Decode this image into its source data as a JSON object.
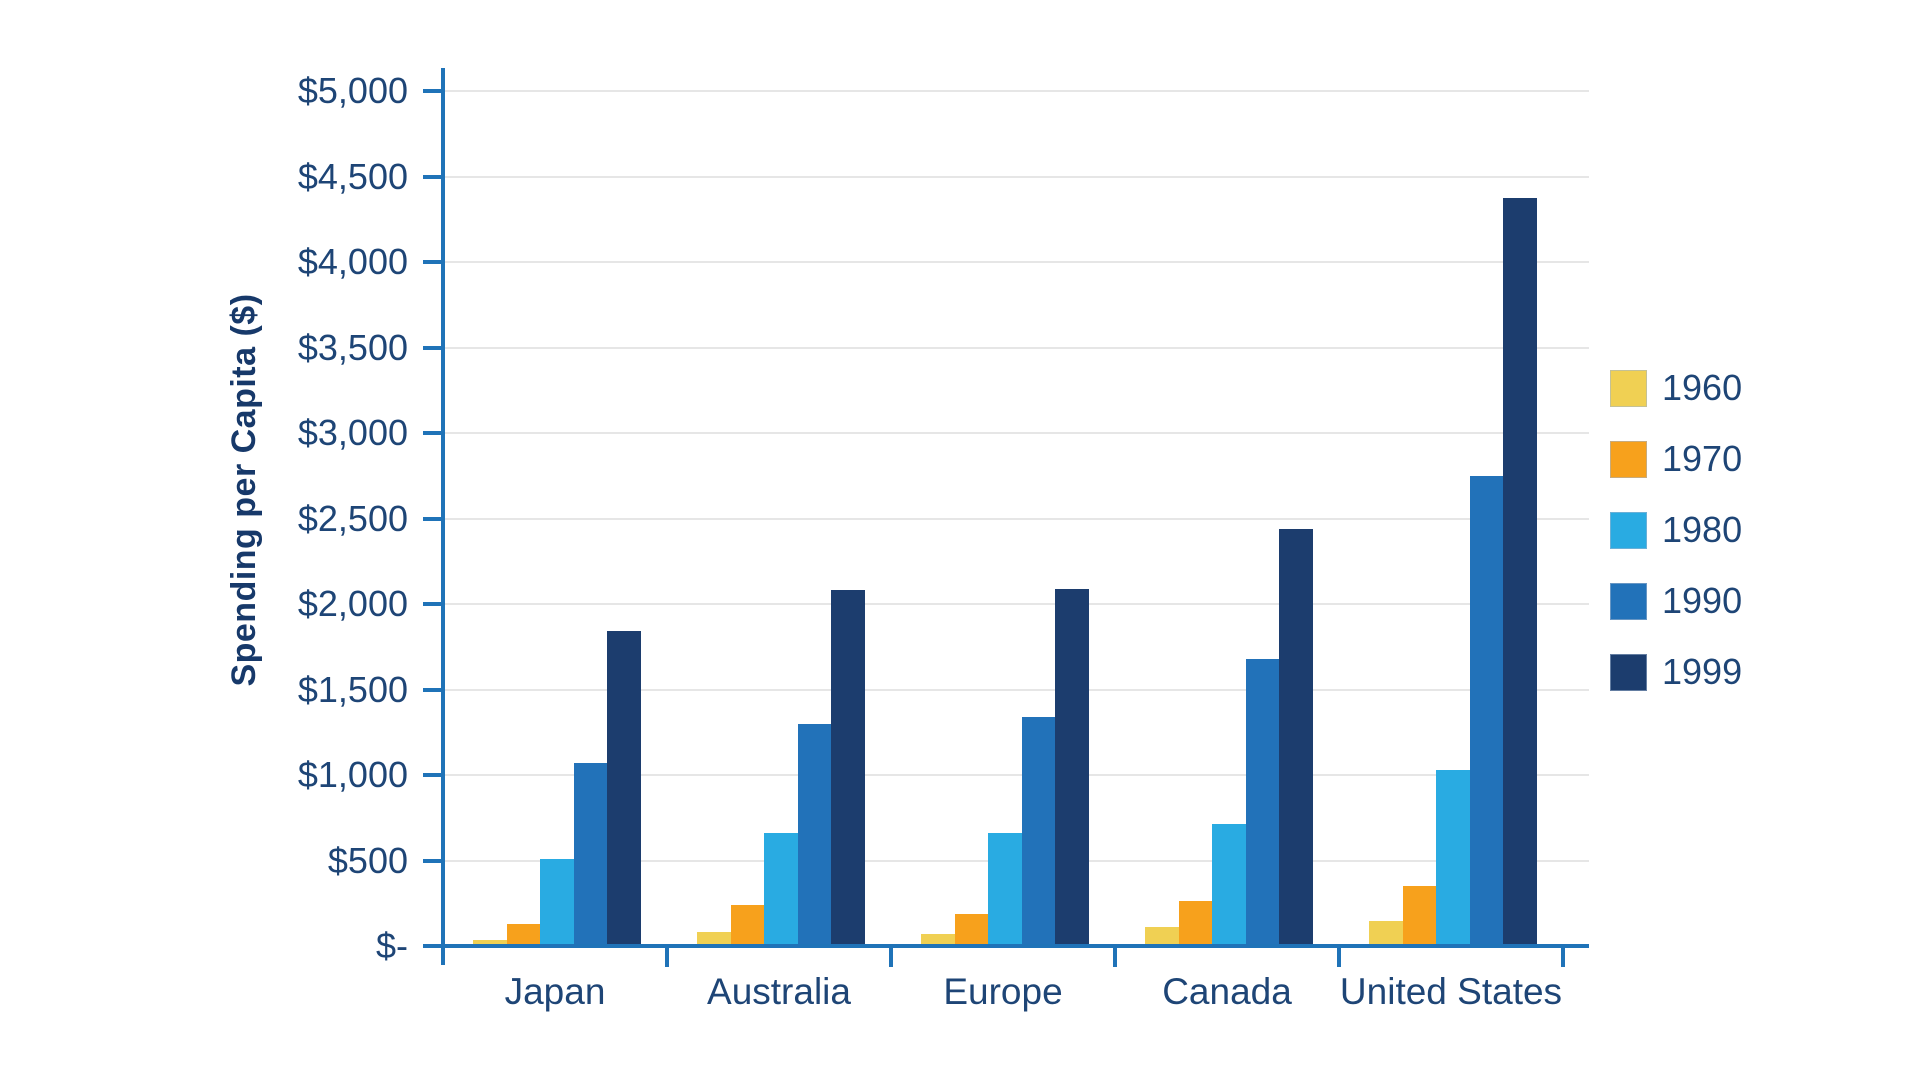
{
  "chart_data": {
    "type": "bar",
    "title": "",
    "subtitle": "",
    "xlabel": "",
    "ylabel": "Spending per Capita ($)",
    "categories": [
      "Japan",
      "Australia",
      "Europe",
      "Canada",
      "United States"
    ],
    "series": [
      {
        "name": "1960",
        "color": "#F0D053",
        "values": [
          35,
          80,
          70,
          110,
          145
        ]
      },
      {
        "name": "1970",
        "color": "#F7A11C",
        "values": [
          130,
          240,
          190,
          265,
          350
        ]
      },
      {
        "name": "1980",
        "color": "#29ABE2",
        "values": [
          510,
          660,
          660,
          715,
          1030
        ]
      },
      {
        "name": "1990",
        "color": "#2272B9",
        "values": [
          1070,
          1300,
          1340,
          1680,
          2750
        ]
      },
      {
        "name": "1999",
        "color": "#1C3D6E",
        "values": [
          1840,
          2080,
          2090,
          2440,
          4375
        ]
      }
    ],
    "ylim": [
      0,
      5000
    ],
    "ytick_step": 500,
    "ytick_labels": [
      "$-",
      "$500",
      "$1,000",
      "$1,500",
      "$2,000",
      "$2,500",
      "$3,000",
      "$3,500",
      "$4,000",
      "$4,500",
      "$5,000"
    ],
    "grid": "horizontal-only",
    "legend_position": "right",
    "colors": {
      "axis": "#1F73B8",
      "gridline": "#E6E6E6",
      "tick_label": "#1E4576",
      "category_label": "#1E4576",
      "legend_label": "#1E4576",
      "axis_title": "#17396A",
      "background": "#FFFFFF"
    }
  }
}
